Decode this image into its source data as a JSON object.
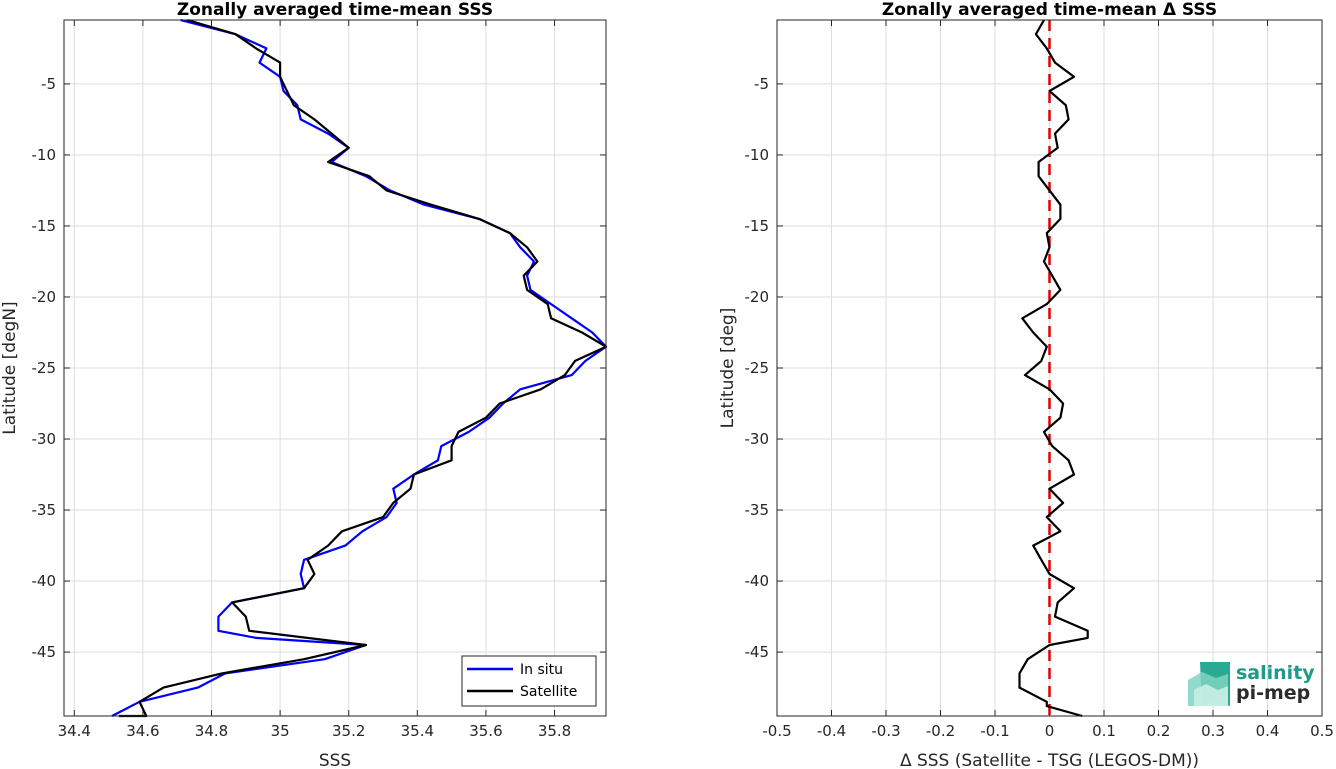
{
  "chart_data": [
    {
      "type": "line",
      "title": "Zonally averaged time-mean SSS",
      "xlabel": "SSS",
      "ylabel": "Latitude [degN]",
      "xlim": [
        34.37,
        35.95
      ],
      "ylim": [
        -49.5,
        -0.5
      ],
      "xticks": [
        34.4,
        34.6,
        34.8,
        35,
        35.2,
        35.4,
        35.6,
        35.8
      ],
      "yticks": [
        -5,
        -10,
        -15,
        -20,
        -25,
        -30,
        -35,
        -40,
        -45
      ],
      "grid": true,
      "legend": "bottom-right",
      "series": [
        {
          "name": "In situ",
          "color": "#0000ff",
          "points": [
            [
              34.71,
              -0.5
            ],
            [
              34.87,
              -1.5
            ],
            [
              34.96,
              -2.5
            ],
            [
              34.94,
              -3.5
            ],
            [
              35.0,
              -4.5
            ],
            [
              35.01,
              -5.5
            ],
            [
              35.05,
              -6.5
            ],
            [
              35.06,
              -7.5
            ],
            [
              35.14,
              -8.5
            ],
            [
              35.2,
              -9.5
            ],
            [
              35.15,
              -10.5
            ],
            [
              35.25,
              -11.5
            ],
            [
              35.32,
              -12.5
            ],
            [
              35.42,
              -13.5
            ],
            [
              35.58,
              -14.5
            ],
            [
              35.67,
              -15.5
            ],
            [
              35.7,
              -16.5
            ],
            [
              35.74,
              -17.5
            ],
            [
              35.72,
              -18.5
            ],
            [
              35.73,
              -19.5
            ],
            [
              35.79,
              -20.5
            ],
            [
              35.85,
              -21.5
            ],
            [
              35.91,
              -22.5
            ],
            [
              35.95,
              -23.5
            ],
            [
              35.89,
              -24.5
            ],
            [
              35.85,
              -25.5
            ],
            [
              35.7,
              -26.5
            ],
            [
              35.65,
              -27.5
            ],
            [
              35.61,
              -28.5
            ],
            [
              35.55,
              -29.5
            ],
            [
              35.47,
              -30.5
            ],
            [
              35.46,
              -31.5
            ],
            [
              35.39,
              -32.5
            ],
            [
              35.33,
              -33.5
            ],
            [
              35.34,
              -34.5
            ],
            [
              35.31,
              -35.5
            ],
            [
              35.24,
              -36.5
            ],
            [
              35.19,
              -37.5
            ],
            [
              35.07,
              -38.5
            ],
            [
              35.06,
              -39.5
            ],
            [
              35.07,
              -40.5
            ],
            [
              34.86,
              -41.5
            ],
            [
              34.82,
              -42.5
            ],
            [
              34.82,
              -43.5
            ],
            [
              34.93,
              -44.0
            ],
            [
              35.25,
              -44.5
            ],
            [
              35.13,
              -45.5
            ],
            [
              34.84,
              -46.5
            ],
            [
              34.76,
              -47.5
            ],
            [
              34.59,
              -48.5
            ],
            [
              34.51,
              -49.5
            ]
          ]
        },
        {
          "name": "Satellite",
          "color": "#000000",
          "points": [
            [
              34.73,
              -0.5
            ],
            [
              34.87,
              -1.5
            ],
            [
              34.93,
              -2.5
            ],
            [
              35.0,
              -3.5
            ],
            [
              35.0,
              -4.5
            ],
            [
              35.04,
              -6.5
            ],
            [
              35.1,
              -7.5
            ],
            [
              35.15,
              -8.5
            ],
            [
              35.2,
              -9.5
            ],
            [
              35.14,
              -10.5
            ],
            [
              35.26,
              -11.5
            ],
            [
              35.31,
              -12.5
            ],
            [
              35.44,
              -13.5
            ],
            [
              35.58,
              -14.5
            ],
            [
              35.67,
              -15.5
            ],
            [
              35.72,
              -16.5
            ],
            [
              35.75,
              -17.5
            ],
            [
              35.71,
              -18.5
            ],
            [
              35.72,
              -19.5
            ],
            [
              35.78,
              -20.5
            ],
            [
              35.79,
              -21.5
            ],
            [
              35.88,
              -22.5
            ],
            [
              35.95,
              -23.5
            ],
            [
              35.86,
              -24.5
            ],
            [
              35.83,
              -25.5
            ],
            [
              35.76,
              -26.5
            ],
            [
              35.64,
              -27.5
            ],
            [
              35.6,
              -28.5
            ],
            [
              35.52,
              -29.5
            ],
            [
              35.5,
              -30.5
            ],
            [
              35.5,
              -31.5
            ],
            [
              35.39,
              -32.5
            ],
            [
              35.38,
              -33.5
            ],
            [
              35.33,
              -34.5
            ],
            [
              35.3,
              -35.5
            ],
            [
              35.18,
              -36.5
            ],
            [
              35.14,
              -37.5
            ],
            [
              35.08,
              -38.5
            ],
            [
              35.1,
              -39.5
            ],
            [
              35.07,
              -40.5
            ],
            [
              34.86,
              -41.5
            ],
            [
              34.9,
              -42.5
            ],
            [
              34.91,
              -43.5
            ],
            [
              35.25,
              -44.5
            ],
            [
              35.07,
              -45.5
            ],
            [
              34.83,
              -46.5
            ],
            [
              34.66,
              -47.5
            ],
            [
              34.59,
              -48.5
            ],
            [
              34.61,
              -49.5
            ],
            [
              34.53,
              -49.5
            ]
          ]
        }
      ]
    },
    {
      "type": "line",
      "title": "Zonally averaged time-mean Δ SSS",
      "xlabel": "Δ SSS (Satellite - TSG (LEGOS-DM))",
      "ylabel": "Latitude [deg]",
      "xlim": [
        -0.5,
        0.5
      ],
      "ylim": [
        -49.5,
        -0.5
      ],
      "xticks": [
        -0.5,
        -0.4,
        -0.3,
        -0.2,
        -0.1,
        0,
        0.1,
        0.2,
        0.3,
        0.4,
        0.5
      ],
      "yticks": [
        -5,
        -10,
        -15,
        -20,
        -25,
        -30,
        -35,
        -40,
        -45
      ],
      "grid": true,
      "reference_line": {
        "x": 0,
        "color": "#e00000",
        "style": "dashed"
      },
      "series": [
        {
          "color": "#000000",
          "points": [
            [
              -0.01,
              -0.5
            ],
            [
              -0.025,
              -1.5
            ],
            [
              -0.005,
              -2.5
            ],
            [
              0.01,
              -3.5
            ],
            [
              0.045,
              -4.5
            ],
            [
              0.0,
              -5.5
            ],
            [
              0.03,
              -6.5
            ],
            [
              0.035,
              -7.5
            ],
            [
              0.01,
              -8.5
            ],
            [
              0.015,
              -9.5
            ],
            [
              -0.02,
              -10.5
            ],
            [
              -0.02,
              -11.5
            ],
            [
              0.0,
              -12.5
            ],
            [
              0.02,
              -13.5
            ],
            [
              0.02,
              -14.5
            ],
            [
              -0.005,
              -15.5
            ],
            [
              0.0,
              -16.5
            ],
            [
              -0.01,
              -17.5
            ],
            [
              0.005,
              -18.5
            ],
            [
              0.02,
              -19.5
            ],
            [
              -0.005,
              -20.5
            ],
            [
              -0.05,
              -21.5
            ],
            [
              -0.03,
              -22.5
            ],
            [
              -0.005,
              -23.5
            ],
            [
              -0.015,
              -24.5
            ],
            [
              -0.045,
              -25.5
            ],
            [
              0.0,
              -26.5
            ],
            [
              0.025,
              -27.5
            ],
            [
              0.02,
              -28.5
            ],
            [
              -0.01,
              -29.5
            ],
            [
              0.005,
              -30.5
            ],
            [
              0.035,
              -31.5
            ],
            [
              0.045,
              -32.5
            ],
            [
              0.0,
              -33.5
            ],
            [
              0.025,
              -34.5
            ],
            [
              -0.005,
              -35.5
            ],
            [
              0.02,
              -36.5
            ],
            [
              -0.03,
              -37.5
            ],
            [
              -0.015,
              -38.5
            ],
            [
              0.0,
              -39.5
            ],
            [
              0.045,
              -40.5
            ],
            [
              0.015,
              -41.5
            ],
            [
              0.01,
              -42.5
            ],
            [
              0.07,
              -43.5
            ],
            [
              0.07,
              -44.0
            ],
            [
              0.0,
              -44.5
            ],
            [
              -0.04,
              -45.5
            ],
            [
              -0.055,
              -46.5
            ],
            [
              -0.055,
              -47.5
            ],
            [
              -0.005,
              -48.5
            ],
            [
              -0.005,
              -48.8
            ],
            [
              0.06,
              -49.5
            ]
          ]
        }
      ]
    }
  ],
  "legend": {
    "items": [
      {
        "label": "In situ",
        "color": "#0000ff"
      },
      {
        "label": "Satellite",
        "color": "#000000"
      }
    ]
  },
  "logo": {
    "line1": "salinity",
    "line2": "pi-mep"
  }
}
